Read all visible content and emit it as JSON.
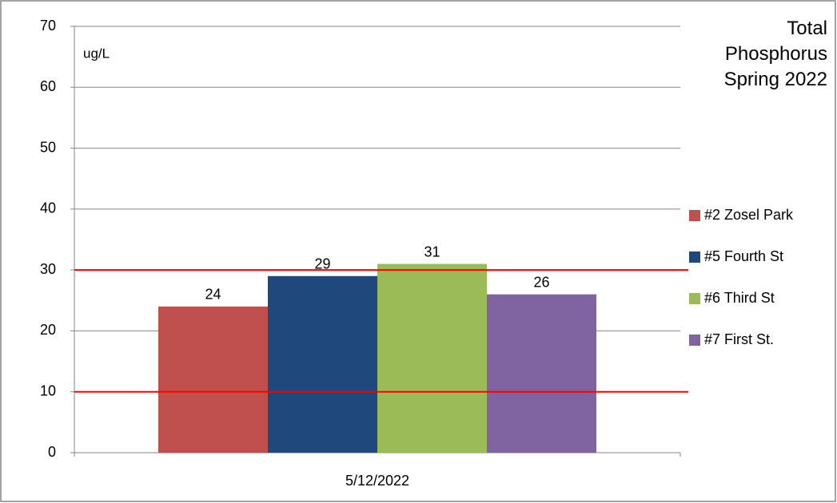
{
  "chart_data": {
    "type": "bar",
    "title": "Total Phosphorus Spring 2022",
    "y_label": "ug/L",
    "categories": [
      "5/12/2022"
    ],
    "series": [
      {
        "name": "#2 Zosel Park",
        "color": "#c0504d",
        "values": [
          24
        ]
      },
      {
        "name": "#5 Fourth St",
        "color": "#1f497d",
        "values": [
          29
        ]
      },
      {
        "name": "#6 Third St",
        "color": "#9bbb59",
        "values": [
          31
        ]
      },
      {
        "name": "#7 First St.",
        "color": "#8064a2",
        "values": [
          26
        ]
      }
    ],
    "ylim": [
      0,
      70
    ],
    "yticks": [
      0,
      10,
      20,
      30,
      40,
      50,
      60,
      70
    ],
    "grid": true,
    "reference_lines": [
      10,
      30
    ],
    "reference_color": "#ff0000",
    "legend": "right"
  }
}
